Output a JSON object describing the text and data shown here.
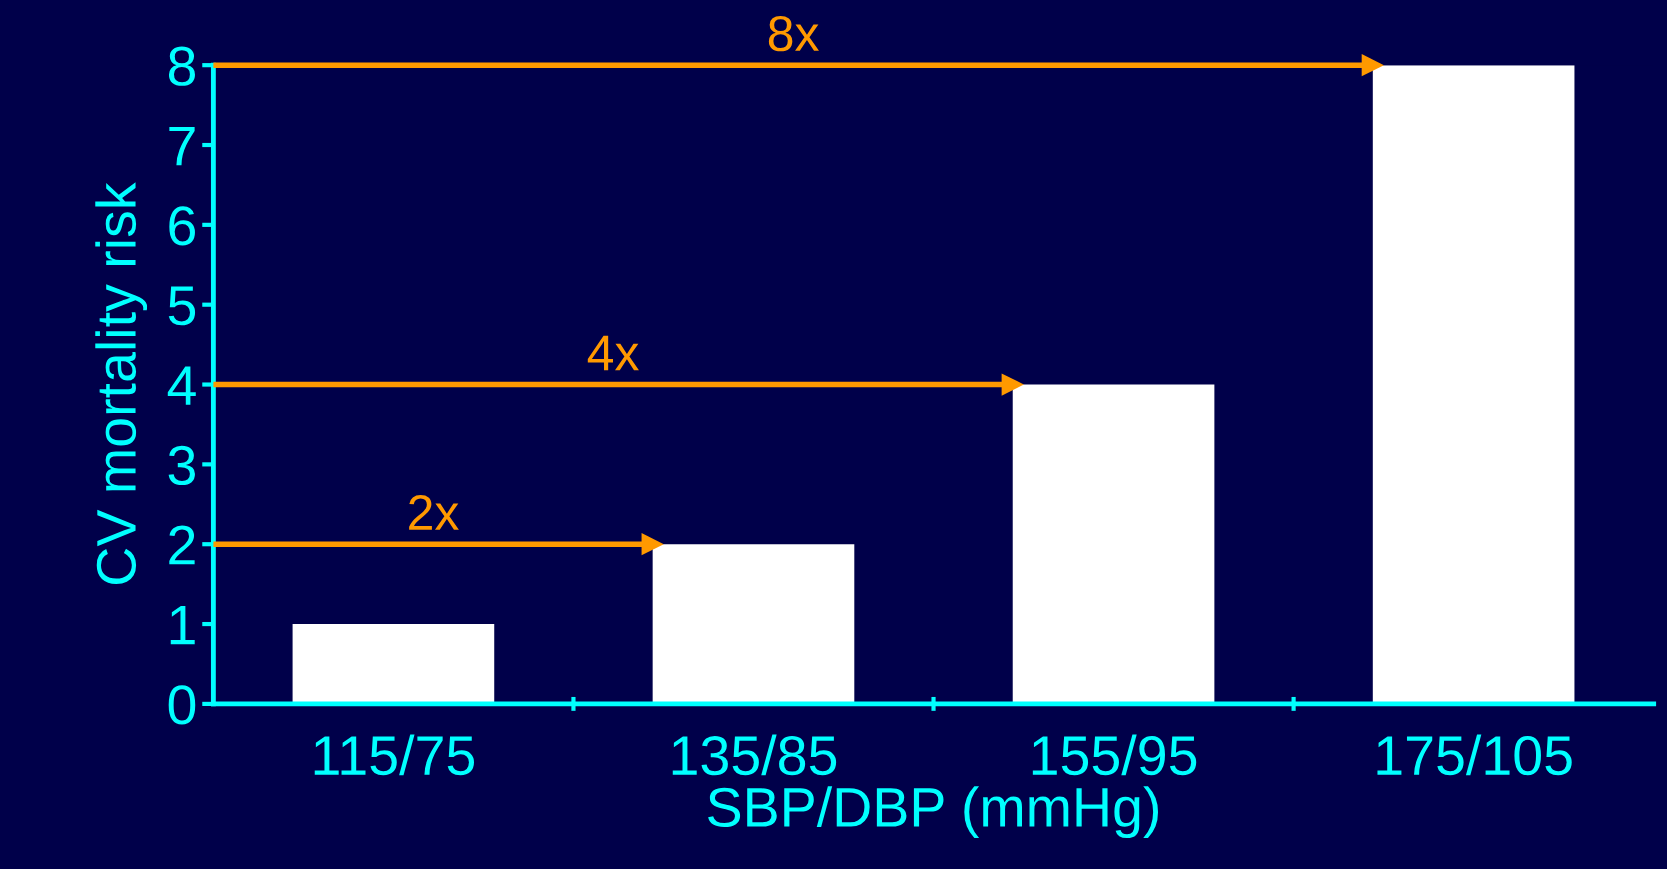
{
  "chart_data": {
    "type": "bar",
    "xlabel": "SBP/DBP (mmHg)",
    "ylabel": "CV mortality risk",
    "categories": [
      "115/75",
      "135/85",
      "155/95",
      "175/105"
    ],
    "values": [
      1,
      2,
      4,
      8
    ],
    "color": "#ffffff",
    "ylim": [
      0,
      8
    ],
    "yticks": [
      0,
      1,
      2,
      3,
      4,
      5,
      6,
      7,
      8
    ],
    "grid": false,
    "legend": false,
    "ref_lines": [
      {
        "axis": "y",
        "value": 2,
        "label": "2x",
        "color": "#ff9900"
      },
      {
        "axis": "y",
        "value": 4,
        "label": "4x",
        "color": "#ff9900"
      },
      {
        "axis": "y",
        "value": 8,
        "label": "8x",
        "color": "#ff9900"
      }
    ]
  }
}
